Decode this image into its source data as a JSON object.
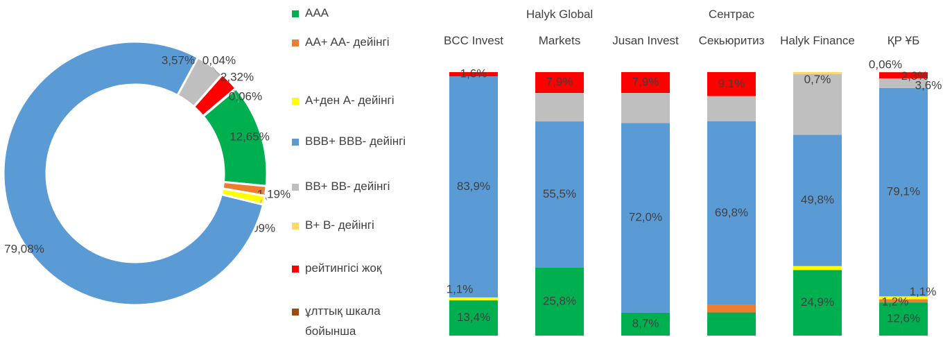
{
  "chart_data": [
    {
      "type": "pie",
      "categories": [
        "AAA",
        "AA+ AA- дейінгі",
        "A+ден A- дейінгі",
        "BBB+ BBB- дейінгі",
        "BB+ BB- дейінгі",
        "B+ B- дейінгі",
        "рейтингісі жоқ",
        "ұлттық шкала бойынша"
      ],
      "colors": [
        "#00b050",
        "#ed7d31",
        "#ffff00",
        "#5b9bd5",
        "#bfbfbf",
        "#ffd966",
        "#ff0000",
        "#9c4a0e"
      ],
      "values": [
        12.65,
        1.19,
        1.09,
        79.08,
        3.57,
        0.04,
        2.32,
        0.06
      ],
      "value_labels": [
        "12,65%",
        "1,19%",
        "1,09%",
        "79,08%",
        "3,57%",
        "0,04%",
        "2,32%",
        "0,06%"
      ]
    },
    {
      "type": "stacked_bar",
      "categories": [
        "BCC Invest",
        "Halyk Global Markets",
        "Jusan Invest",
        "Сентрас Секьюритиз",
        "Halyk Finance",
        "ҚР ҰБ"
      ],
      "ylim": [
        0,
        100
      ],
      "series": [
        {
          "name": "AAA",
          "color": "#00b050",
          "values": [
            13.4,
            25.8,
            8.7,
            8.8,
            24.9,
            12.6
          ],
          "value_labels": [
            "13,4%",
            "25,8%",
            "8,7%",
            null,
            "24,9%",
            "12,6%"
          ]
        },
        {
          "name": "AA+ AA- дейінгі",
          "color": "#ed7d31",
          "values": [
            0,
            0,
            0,
            2.8,
            0,
            1.2
          ],
          "value_labels": [
            null,
            null,
            null,
            null,
            null,
            "1,2%"
          ]
        },
        {
          "name": "A+ден A- дейінгі",
          "color": "#ffff00",
          "values": [
            1.1,
            0,
            0,
            0,
            1.5,
            1.1
          ],
          "value_labels": [
            "1,1%",
            null,
            null,
            null,
            null,
            "1,1%"
          ]
        },
        {
          "name": "BBB+ BBB- дейінгі",
          "color": "#5b9bd5",
          "values": [
            83.9,
            55.5,
            72.0,
            69.8,
            49.8,
            79.1
          ],
          "value_labels": [
            "83,9%",
            "55,5%",
            "72,0%",
            "69,8%",
            "49,8%",
            "79,1%"
          ]
        },
        {
          "name": "BB+ BB- дейінгі",
          "color": "#bfbfbf",
          "values": [
            0,
            10.8,
            11.4,
            9.5,
            23.1,
            3.6
          ],
          "value_labels": [
            null,
            null,
            null,
            null,
            null,
            "3,6%"
          ]
        },
        {
          "name": "B+ B- дейінгі",
          "color": "#ffd966",
          "values": [
            0,
            0,
            0,
            0,
            0.7,
            0.04
          ],
          "value_labels": [
            null,
            null,
            null,
            null,
            "0,7%",
            null
          ]
        },
        {
          "name": "рейтингісі жоқ",
          "color": "#ff0000",
          "values": [
            1.6,
            7.9,
            7.9,
            9.1,
            0,
            2.3
          ],
          "value_labels": [
            "1,6%",
            "7,9%",
            "7,9%",
            "9,1%",
            null,
            "2,3%"
          ]
        },
        {
          "name": "ұлттық шкала бойынша",
          "color": "#9c4a0e",
          "values": [
            0,
            0,
            0,
            0,
            0,
            0.06
          ],
          "value_labels": [
            null,
            null,
            null,
            null,
            null,
            "0,06%"
          ]
        }
      ]
    }
  ]
}
